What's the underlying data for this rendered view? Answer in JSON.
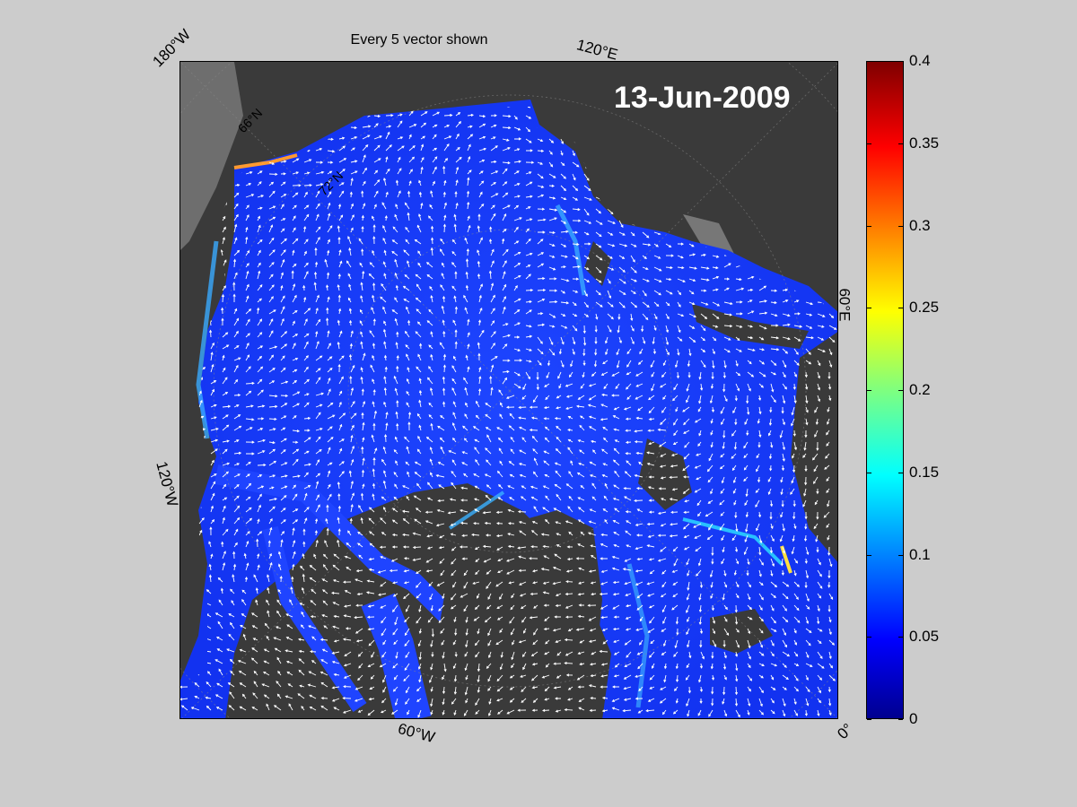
{
  "figure": {
    "title": "Every 5 vector shown",
    "date": "13-Jun-2009",
    "lon_labels": {
      "top_left": "180°W",
      "top_right": "120°E",
      "right": "60°E",
      "left": "120°W",
      "bottom": "60°W",
      "bottom_right": "0°"
    },
    "lat_labels": {
      "lat_66": "66°N",
      "lat_72": "72°N"
    }
  },
  "colorbar": {
    "ticks": [
      "0",
      "0.05",
      "0.1",
      "0.15",
      "0.2",
      "0.25",
      "0.3",
      "0.35",
      "0.4"
    ],
    "min": 0,
    "max": 0.4,
    "colormap": "jet"
  },
  "colors": {
    "land": "#3a3a3a",
    "ocean_field": "#1a3cff",
    "vectors": "#ffffff",
    "background": "#cccccc"
  }
}
